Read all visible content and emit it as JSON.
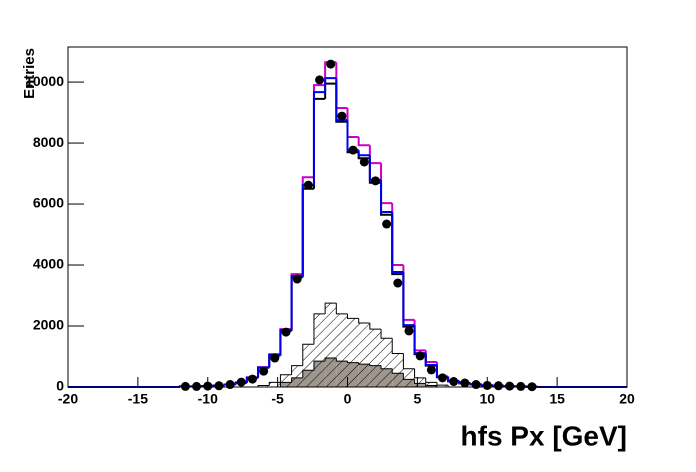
{
  "chart_data": {
    "type": "histogram",
    "x_label": "hfs Px [GeV]",
    "y_label": "Entries",
    "xlim": [
      -20,
      20
    ],
    "ylim": [
      0,
      11150
    ],
    "xticks": [
      -20,
      -15,
      -10,
      -5,
      0,
      5,
      10,
      15,
      20
    ],
    "yticks": [
      0,
      2000,
      4000,
      6000,
      8000,
      10000
    ],
    "bins": [
      -20,
      -19.2,
      -18.4,
      -17.6,
      -16.8,
      -16,
      -15.2,
      -14.4,
      -13.6,
      -12.8,
      -12,
      -11.2,
      -10.4,
      -9.6,
      -8.8,
      -8,
      -7.2,
      -6.4,
      -5.6,
      -4.8,
      -4,
      -3.2,
      -2.4,
      -1.6,
      -0.8,
      0,
      0.8,
      1.6,
      2.4,
      3.2,
      4,
      4.8,
      5.6,
      6.4,
      7.2,
      8,
      8.8,
      9.6,
      10.4,
      11.2,
      12,
      12.8,
      13.6,
      14.4,
      15.2,
      16,
      16.8,
      17.6,
      18.4,
      19.2,
      20
    ],
    "series": [
      {
        "color": "#9e958d",
        "fill": "solid",
        "values": [
          0,
          0,
          0,
          0,
          0,
          0,
          0,
          0,
          0,
          0,
          0,
          0,
          0,
          0,
          0,
          0,
          0,
          0,
          0,
          150,
          300,
          550,
          850,
          950,
          850,
          800,
          750,
          700,
          600,
          450,
          250,
          120,
          50,
          0,
          0,
          0,
          0,
          0,
          0,
          0,
          0,
          0,
          0,
          0,
          0,
          0,
          0,
          0,
          0,
          0
        ]
      },
      {
        "color": "#000000",
        "fill": "hatch",
        "values": [
          0,
          0,
          0,
          0,
          0,
          0,
          0,
          0,
          0,
          0,
          0,
          0,
          0,
          0,
          0,
          0,
          0,
          50,
          150,
          400,
          700,
          1400,
          2400,
          2750,
          2400,
          2250,
          2100,
          1900,
          1600,
          1100,
          600,
          300,
          150,
          60,
          0,
          0,
          0,
          0,
          0,
          0,
          0,
          0,
          0,
          0,
          0,
          0,
          0,
          0,
          0,
          0
        ]
      },
      {
        "color": "#cc00cc",
        "fill": "none",
        "values": [
          0,
          0,
          0,
          0,
          0,
          0,
          0,
          0,
          0,
          0,
          20,
          20,
          30,
          50,
          80,
          150,
          320,
          650,
          1080,
          1900,
          3700,
          6880,
          9900,
          10650,
          9150,
          8200,
          7930,
          7340,
          6030,
          4000,
          2200,
          1200,
          820,
          350,
          200,
          130,
          90,
          60,
          40,
          30,
          20,
          10,
          0,
          0,
          0,
          0,
          0,
          0,
          0,
          0
        ]
      },
      {
        "color": "#000000",
        "fill": "none",
        "values": [
          0,
          0,
          0,
          0,
          0,
          0,
          0,
          0,
          0,
          0,
          20,
          20,
          30,
          50,
          80,
          140,
          300,
          630,
          1030,
          1840,
          3600,
          6500,
          9450,
          9950,
          8700,
          7700,
          7500,
          6700,
          5650,
          3700,
          1980,
          1080,
          700,
          320,
          190,
          120,
          80,
          50,
          40,
          30,
          20,
          10,
          0,
          0,
          0,
          0,
          0,
          0,
          0,
          0
        ]
      },
      {
        "color": "#0000ee",
        "fill": "none",
        "values": [
          0,
          0,
          0,
          0,
          0,
          0,
          0,
          0,
          0,
          0,
          20,
          20,
          30,
          50,
          80,
          140,
          300,
          640,
          1050,
          1870,
          3640,
          6620,
          9670,
          10130,
          8750,
          7770,
          7600,
          6790,
          5740,
          3770,
          2030,
          1110,
          720,
          330,
          190,
          125,
          85,
          55,
          40,
          30,
          20,
          10,
          0,
          0,
          0,
          0,
          0,
          0,
          0,
          0
        ]
      }
    ],
    "points": {
      "color": "#000000",
      "x": [
        -11.6,
        -10.8,
        -10,
        -9.2,
        -8.4,
        -7.6,
        -6.8,
        -6,
        -5.2,
        -4.4,
        -3.6,
        -2.8,
        -2,
        -1.2,
        -0.4,
        0.4,
        1.2,
        2,
        2.8,
        3.6,
        4.4,
        5.2,
        6,
        6.8,
        7.6,
        8.4,
        9.2,
        10,
        10.8,
        11.6,
        12.4,
        13.2
      ],
      "values": [
        20,
        20,
        30,
        40,
        80,
        160,
        260,
        520,
        950,
        1800,
        3540,
        6620,
        10070,
        10590,
        8885,
        7770,
        7380,
        6760,
        5345,
        3410,
        1840,
        1020,
        560,
        300,
        180,
        130,
        80,
        50,
        40,
        30,
        20,
        10
      ]
    }
  }
}
